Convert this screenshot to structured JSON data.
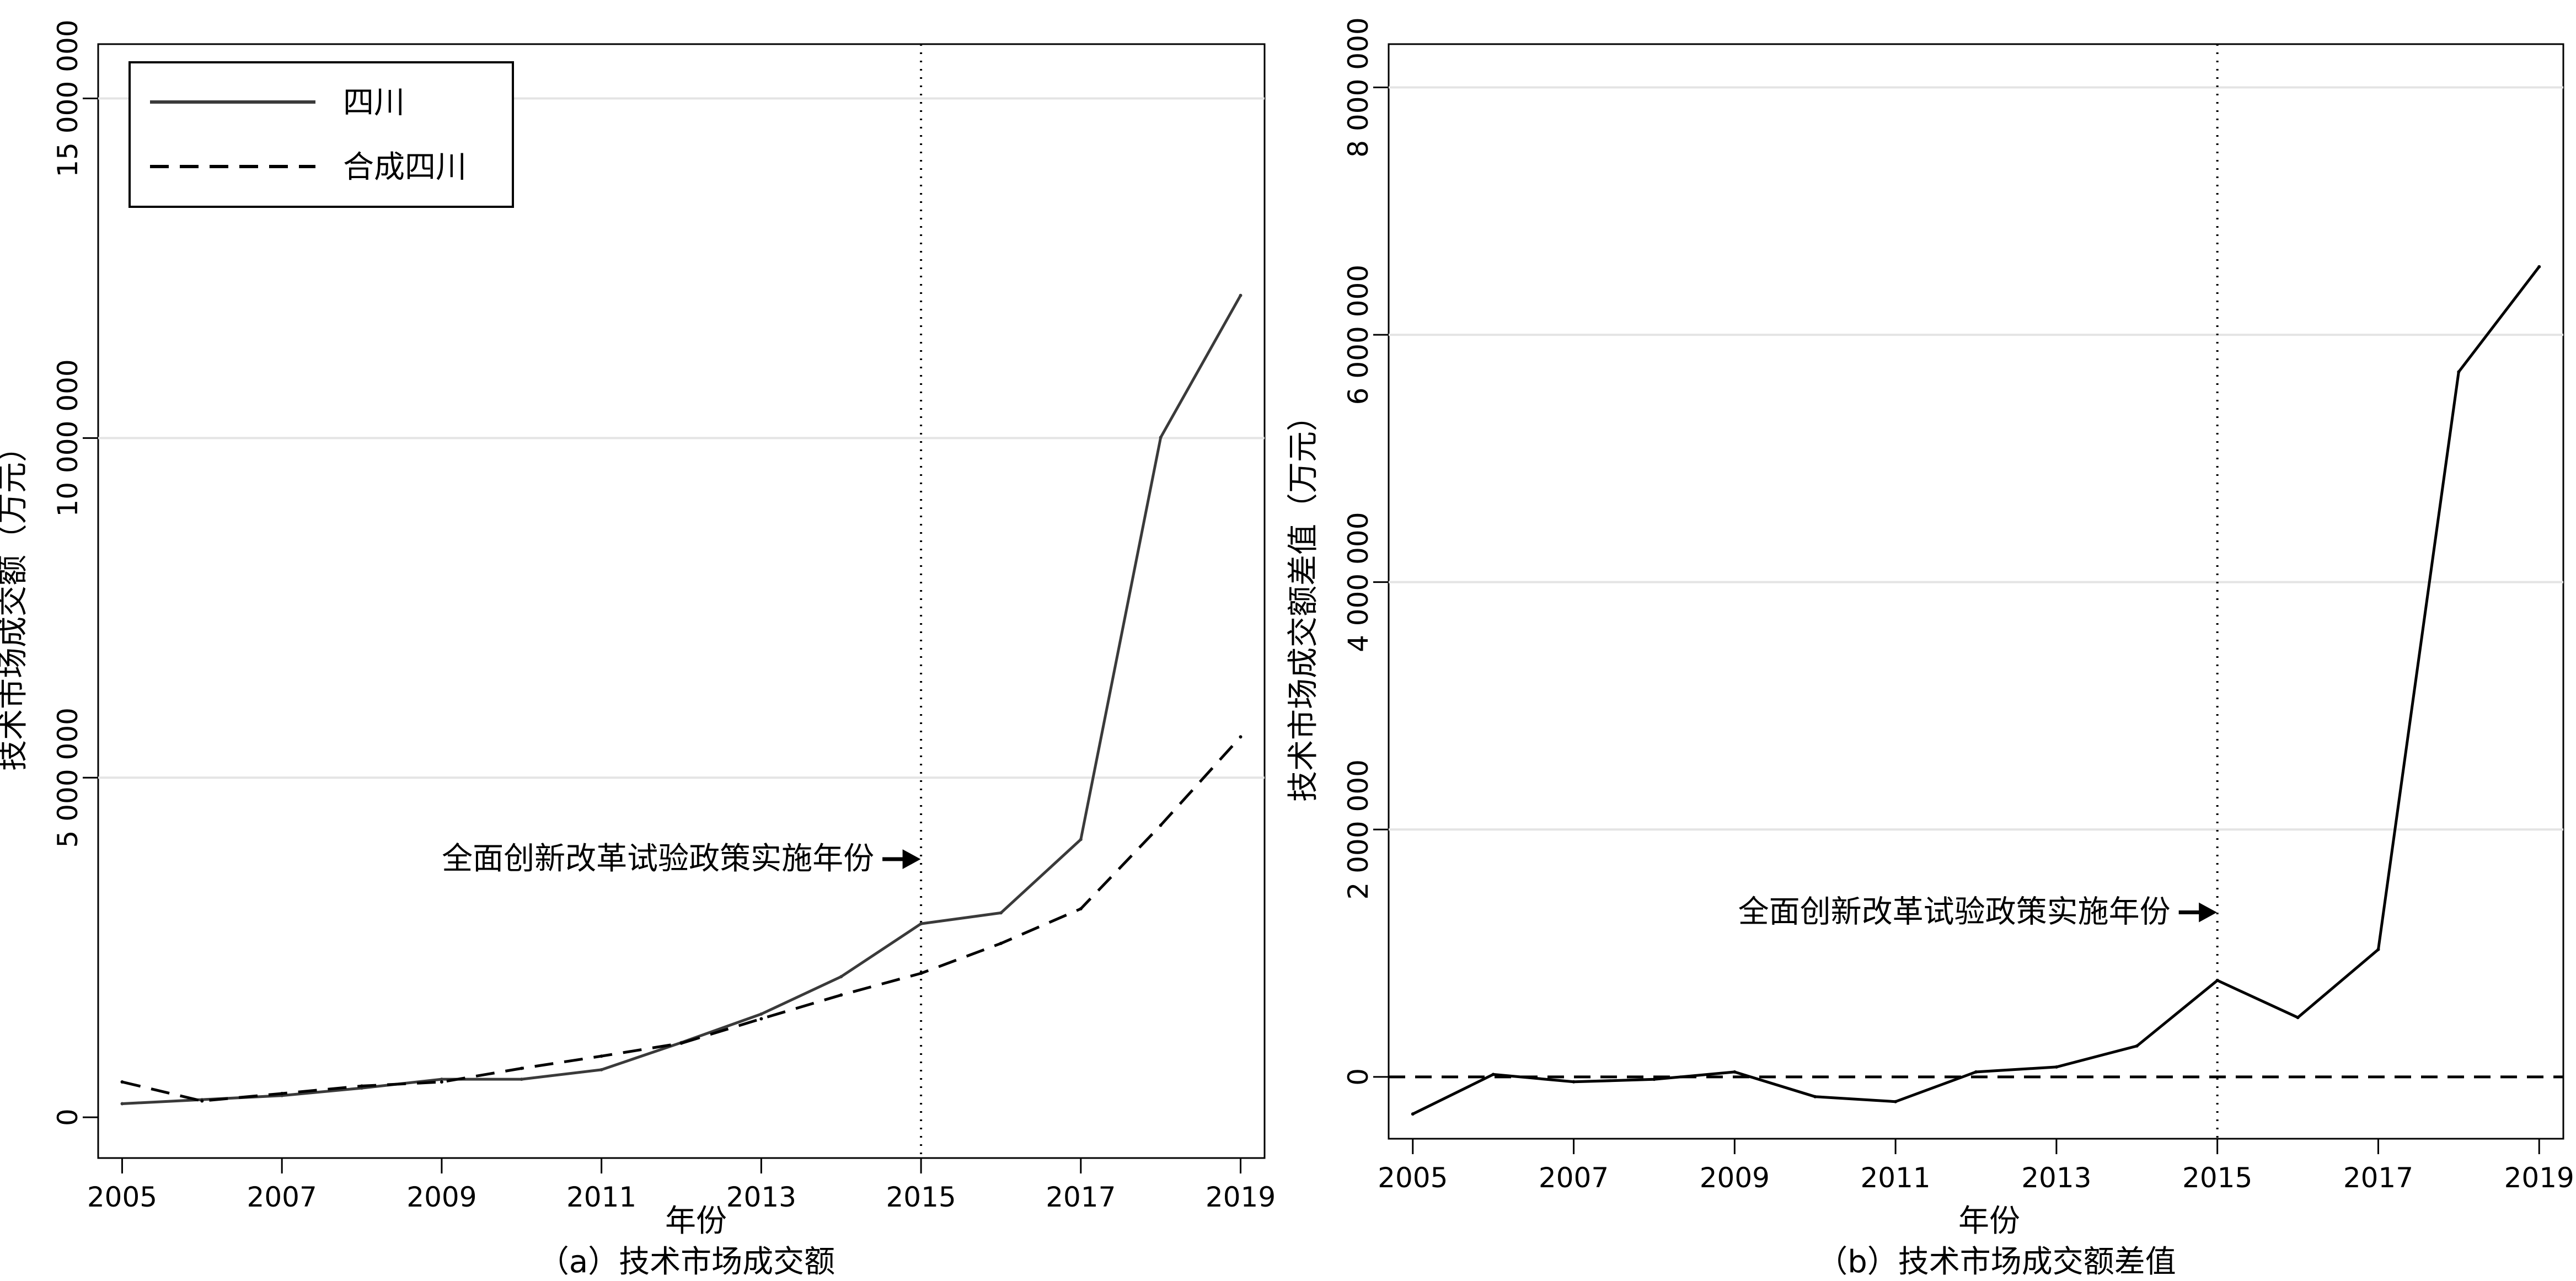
{
  "chart_data": [
    {
      "type": "line",
      "caption": "（a）技术市场成交额",
      "xlabel": "年份",
      "ylabel": "技术市场成交额（万元）",
      "x": [
        2005,
        2006,
        2007,
        2008,
        2009,
        2010,
        2011,
        2012,
        2013,
        2014,
        2015,
        2016,
        2017,
        2018,
        2019
      ],
      "xticks": [
        "2005",
        "2007",
        "2009",
        "2011",
        "2013",
        "2015",
        "2017",
        "2019"
      ],
      "yticks": [
        "0",
        "5 000 000",
        "10 000 000",
        "15 000 000"
      ],
      "ytick_values": [
        0,
        5000000,
        10000000,
        15000000
      ],
      "xlim": [
        2004.7,
        2019.3
      ],
      "ylim": [
        -600000,
        15800000
      ],
      "grid": "horizontal",
      "legend_position": "top-left",
      "series": [
        {
          "name": "四川",
          "style": "solid",
          "color": "#3a3a3a",
          "values": [
            200000,
            260000,
            320000,
            430000,
            560000,
            560000,
            700000,
            1100000,
            1520000,
            2070000,
            2850000,
            3010000,
            4090000,
            10010000,
            12100000
          ]
        },
        {
          "name": "合成四川",
          "style": "dashed",
          "color": "#000000",
          "values": [
            520000,
            240000,
            350000,
            460000,
            520000,
            720000,
            900000,
            1090000,
            1450000,
            1800000,
            2120000,
            2560000,
            3070000,
            4300000,
            5600000
          ]
        }
      ],
      "reference_line": {
        "x": 2015,
        "style": "dotted"
      },
      "annotation": {
        "text": "全面创新改革试验政策实施年份",
        "x": 2015,
        "y": 3800000
      }
    },
    {
      "type": "line",
      "caption": "（b）技术市场成交额差值",
      "xlabel": "年份",
      "ylabel": "技术市场成交额差值（万元）",
      "x": [
        2005,
        2006,
        2007,
        2008,
        2009,
        2010,
        2011,
        2012,
        2013,
        2014,
        2015,
        2016,
        2017,
        2018,
        2019
      ],
      "xticks": [
        "2005",
        "2007",
        "2009",
        "2011",
        "2013",
        "2015",
        "2017",
        "2019"
      ],
      "yticks": [
        "0",
        "2 000 000",
        "4 000 000",
        "6 000 000",
        "8 000 000"
      ],
      "ytick_values": [
        0,
        2000000,
        4000000,
        6000000,
        8000000
      ],
      "xlim": [
        2004.7,
        2019.3
      ],
      "ylim": [
        -500000,
        8350000
      ],
      "grid": "horizontal",
      "series": [
        {
          "style": "solid",
          "color": "#000000",
          "values": [
            -300000,
            20000,
            -40000,
            -20000,
            40000,
            -160000,
            -200000,
            40000,
            80000,
            250000,
            780000,
            480000,
            1030000,
            5700000,
            6550000
          ]
        }
      ],
      "zero_line": {
        "y": 0,
        "style": "dashed"
      },
      "reference_line": {
        "x": 2015,
        "style": "dotted"
      },
      "annotation": {
        "text": "全面创新改革试验政策实施年份",
        "x": 2015,
        "y": 1330000
      }
    }
  ]
}
